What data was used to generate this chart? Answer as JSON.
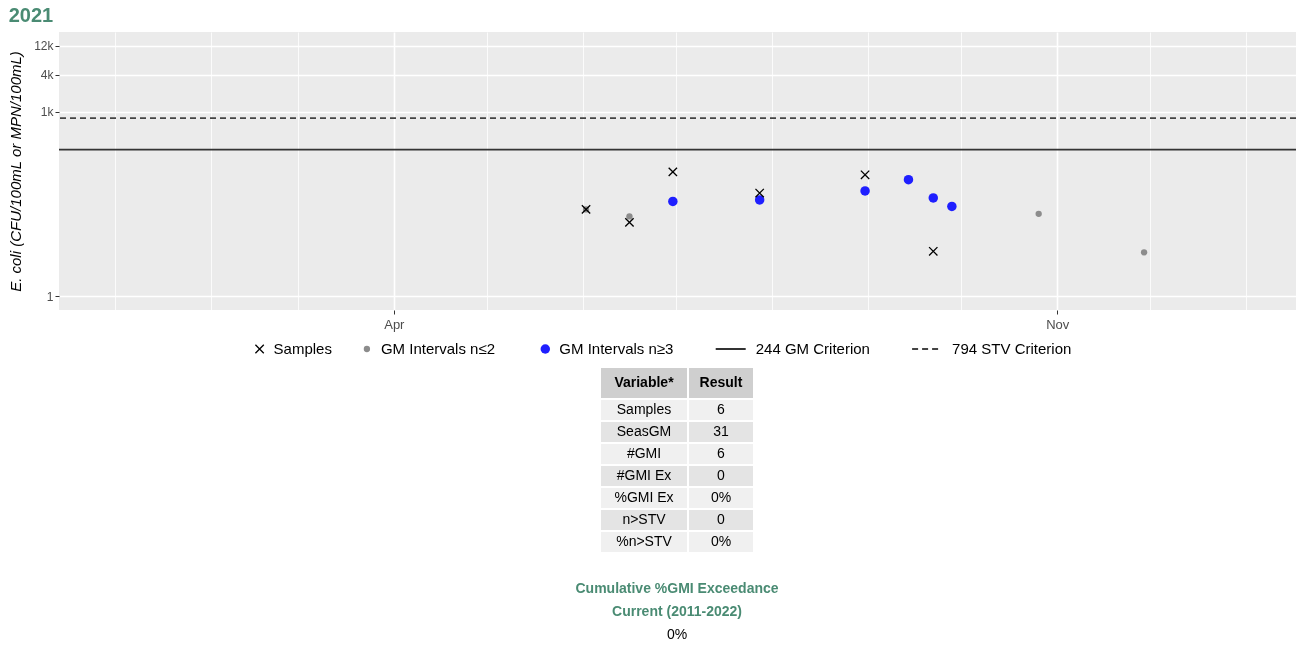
{
  "chart_data": {
    "type": "scatter",
    "title": "2021",
    "ylabel": "E. coli (CFU/100mL or MPN/100mL)",
    "xlim": [
      "2020-12-14",
      "2022-01-17"
    ],
    "xticks": [
      {
        "value": "2021-01-01",
        "label": null
      },
      {
        "value": "2021-02-01",
        "label": null
      },
      {
        "value": "2021-03-01",
        "label": null
      },
      {
        "value": "2021-04-01",
        "label": "Apr"
      },
      {
        "value": "2021-05-01",
        "label": null
      },
      {
        "value": "2021-06-01",
        "label": null
      },
      {
        "value": "2021-07-01",
        "label": null
      },
      {
        "value": "2021-08-01",
        "label": null
      },
      {
        "value": "2021-09-01",
        "label": null
      },
      {
        "value": "2021-10-01",
        "label": null
      },
      {
        "value": "2021-11-01",
        "label": "Nov"
      },
      {
        "value": "2021-12-01",
        "label": null
      },
      {
        "value": "2022-01-01",
        "label": null
      }
    ],
    "ylim": [
      0.6,
      20000
    ],
    "yticks": [
      1,
      {
        "value": 1000,
        "label": "1k"
      },
      {
        "value": 4000,
        "label": "4k"
      },
      {
        "value": 12000,
        "label": "12k"
      }
    ],
    "log": true,
    "grid": true,
    "legend": "bottom",
    "series": [
      {
        "name": "Samples",
        "color": "#000000",
        "marker": "cross",
        "x": [
          "2021-06-02",
          "2021-06-16",
          "2021-06-30",
          "2021-07-28",
          "2021-08-31",
          "2021-09-22"
        ],
        "values": [
          26,
          16,
          106,
          48,
          95,
          5.4
        ]
      },
      {
        "name": "GM Intervals n≤2",
        "color": "#8c8c8c",
        "marker": "circle",
        "x": [
          "2021-06-02",
          "2021-06-16",
          "2021-10-26",
          "2021-11-29"
        ],
        "values": [
          26,
          20,
          22,
          5.2
        ]
      },
      {
        "name": "GM Intervals n≥3",
        "color": "#1f1fff",
        "marker": "circle",
        "x": [
          "2021-06-30",
          "2021-07-28",
          "2021-08-31",
          "2021-09-14",
          "2021-09-22",
          "2021-09-28"
        ],
        "values": [
          35,
          37,
          52,
          79,
          40,
          29
        ]
      }
    ],
    "ref_lines": [
      {
        "axis": "y",
        "value": 244,
        "label": "244 GM Criterion",
        "color": "#333333",
        "line_style": "solid"
      },
      {
        "axis": "y",
        "value": 794,
        "label": "794 STV Criterion",
        "color": "#444444",
        "line_style": "dashed"
      }
    ],
    "annotations": [
      "Variable*",
      "Result",
      "Samples",
      "6",
      "SeasGM",
      "31",
      "#GMI",
      "6",
      "#GMI Ex",
      "0",
      "%GMI Ex",
      "0%",
      "n>STV",
      "0",
      "%n>STV",
      "0%",
      "Cumulative %GMI Exceedance",
      "Current (2011-2022)",
      "0%"
    ]
  }
}
